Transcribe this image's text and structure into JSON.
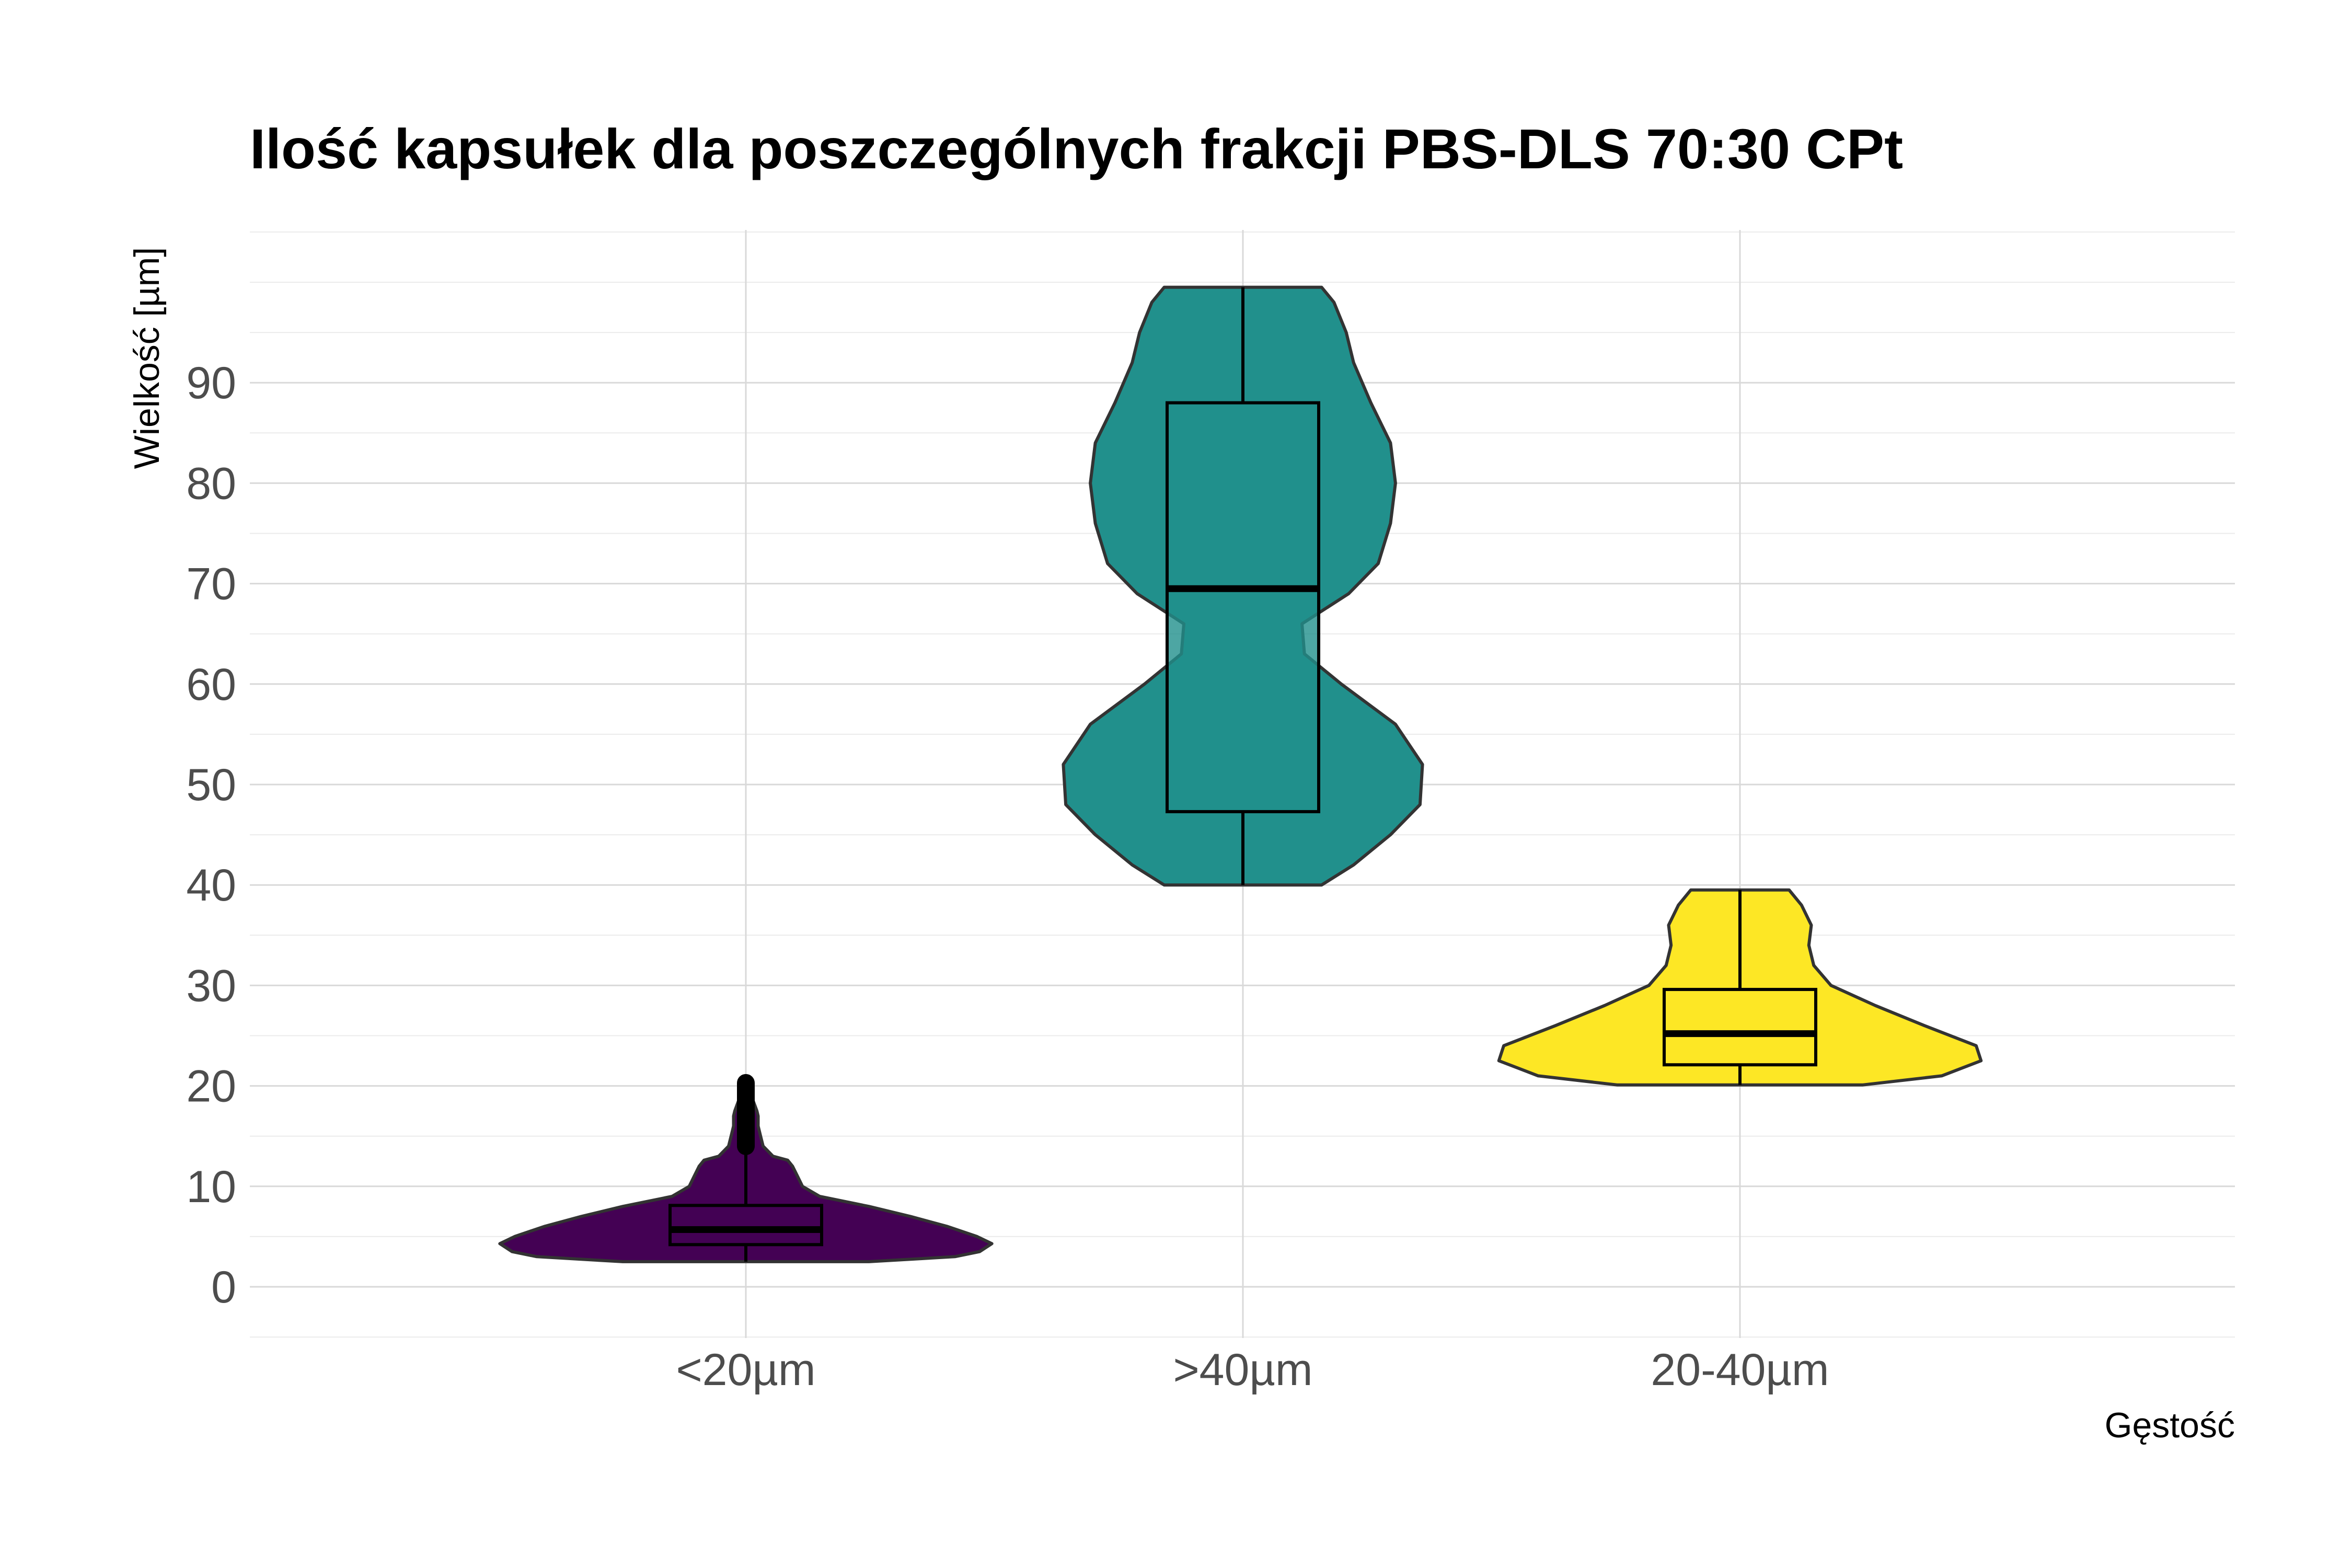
{
  "chart_data": {
    "type": "violin",
    "title": "Ilość kapsułek dla poszczególnych frakcji PBS-DLS 70:30 CPt",
    "xlabel": "Gęstość",
    "ylabel": "Wielkość [µm]",
    "categories": [
      "<20µm",
      ">40µm",
      "20-40µm"
    ],
    "ylim": [
      -5,
      105
    ],
    "yticks": [
      0,
      10,
      20,
      30,
      40,
      50,
      60,
      70,
      80,
      90
    ],
    "grid": true,
    "legend": "none",
    "series": [
      {
        "category": "<20µm",
        "color": "#440154",
        "box": {
          "whisker_low": 2.5,
          "q1": 4.2,
          "median": 5.7,
          "q3": 8.1,
          "whisker_high": 14
        },
        "outliers_range": [
          14,
          20.3
        ],
        "density": [
          [
            2.5,
            0.5
          ],
          [
            3,
            0.85
          ],
          [
            3.5,
            0.95
          ],
          [
            4.3,
            1.0
          ],
          [
            5,
            0.94
          ],
          [
            6,
            0.82
          ],
          [
            7,
            0.67
          ],
          [
            8,
            0.5
          ],
          [
            9,
            0.3
          ],
          [
            10,
            0.23
          ],
          [
            11,
            0.21
          ],
          [
            12,
            0.19
          ],
          [
            12.6,
            0.17
          ],
          [
            13,
            0.11
          ],
          [
            14,
            0.07
          ],
          [
            15,
            0.06
          ],
          [
            16,
            0.05
          ],
          [
            17,
            0.05
          ],
          [
            17.5,
            0.045
          ],
          [
            18.5,
            0.03
          ],
          [
            19.5,
            0.02
          ],
          [
            20.3,
            0.0
          ]
        ]
      },
      {
        "category": ">40µm",
        "color": "#21908C",
        "box": {
          "whisker_low": 40,
          "q1": 47.3,
          "median": 69.5,
          "q3": 88,
          "whisker_high": 99.5
        },
        "outliers_range": [],
        "density": [
          [
            40,
            0.32
          ],
          [
            42,
            0.45
          ],
          [
            45,
            0.6
          ],
          [
            48,
            0.72
          ],
          [
            52,
            0.73
          ],
          [
            56,
            0.62
          ],
          [
            60,
            0.4
          ],
          [
            63,
            0.25
          ],
          [
            66,
            0.24
          ],
          [
            69,
            0.43
          ],
          [
            72,
            0.55
          ],
          [
            76,
            0.6
          ],
          [
            80,
            0.62
          ],
          [
            84,
            0.6
          ],
          [
            88,
            0.52
          ],
          [
            92,
            0.45
          ],
          [
            95,
            0.42
          ],
          [
            98,
            0.37
          ],
          [
            99.5,
            0.32
          ]
        ]
      },
      {
        "category": "20-40µm",
        "color": "#FDE725",
        "box": {
          "whisker_low": 20.1,
          "q1": 22.1,
          "median": 25.2,
          "q3": 29.6,
          "whisker_high": 39.5
        },
        "outliers_range": [],
        "density": [
          [
            20.1,
            0.5
          ],
          [
            21,
            0.82
          ],
          [
            22.5,
            0.98
          ],
          [
            24,
            0.96
          ],
          [
            26,
            0.75
          ],
          [
            28,
            0.55
          ],
          [
            30,
            0.37
          ],
          [
            32,
            0.3
          ],
          [
            34,
            0.28
          ],
          [
            36,
            0.29
          ],
          [
            38,
            0.25
          ],
          [
            39.5,
            0.2
          ]
        ]
      }
    ]
  }
}
